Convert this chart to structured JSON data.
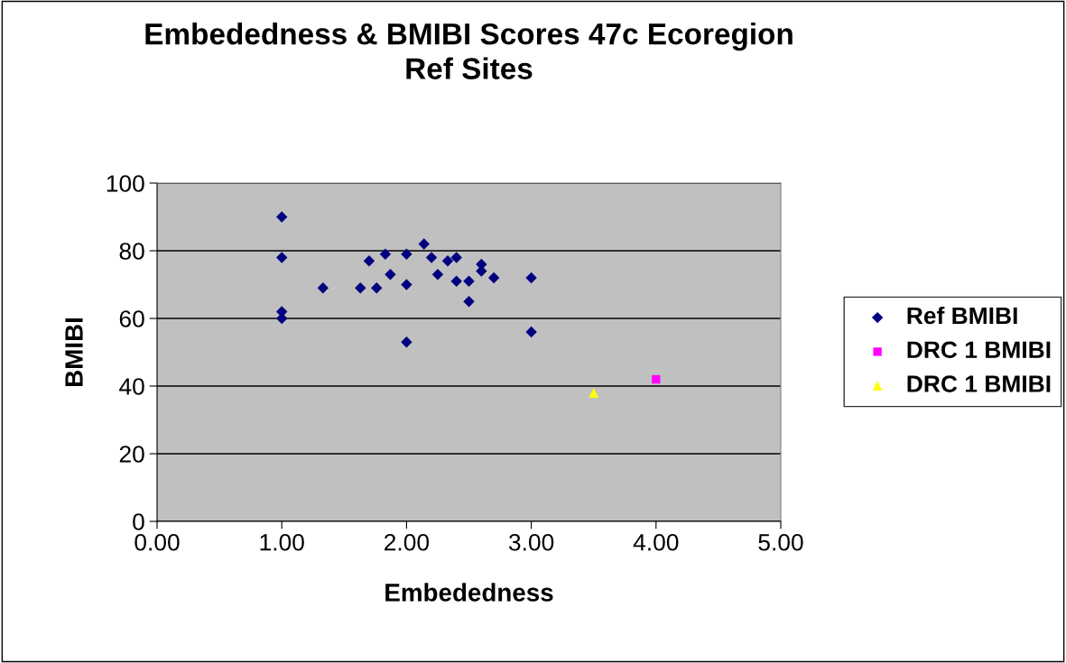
{
  "chart_data": {
    "type": "scatter",
    "title": "Embededness & BMIBI Scores 47c Ecoregion\nRef Sites",
    "xlabel": "Embededness",
    "ylabel": "BMIBI",
    "xlim": [
      0,
      5
    ],
    "xticks": [
      {
        "value": 0,
        "label": "0.00"
      },
      {
        "value": 1,
        "label": "1.00"
      },
      {
        "value": 2,
        "label": "2.00"
      },
      {
        "value": 3,
        "label": "3.00"
      },
      {
        "value": 4,
        "label": "4.00"
      },
      {
        "value": 5,
        "label": "5.00"
      }
    ],
    "ylim": [
      0,
      100
    ],
    "yticks": [
      0,
      20,
      40,
      60,
      80,
      100
    ],
    "grid": "y",
    "legend": "right",
    "series": [
      {
        "name": "Ref BMIBI",
        "color": "#000080",
        "marker": "diamond",
        "x": [
          1,
          1,
          1,
          1,
          1.33,
          1.63,
          1.7,
          1.76,
          1.83,
          1.87,
          2,
          2,
          2,
          2.14,
          2.2,
          2.25,
          2.33,
          2.4,
          2.4,
          2.5,
          2.5,
          2.6,
          2.6,
          2.7,
          3,
          3
        ],
        "values": [
          90,
          78,
          62,
          60,
          69,
          69,
          77,
          69,
          79,
          73,
          79,
          70,
          53,
          82,
          78,
          73,
          77,
          78,
          71,
          71,
          65,
          76,
          74,
          72,
          72,
          56
        ]
      },
      {
        "name": "DRC 1 BMIBI",
        "color": "#ff00ff",
        "marker": "square",
        "x": [
          4
        ],
        "values": [
          42
        ]
      },
      {
        "name": "DRC 1 BMIBI",
        "color": "#ffff00",
        "marker": "triangle",
        "x": [
          3.5
        ],
        "values": [
          38
        ]
      }
    ]
  }
}
